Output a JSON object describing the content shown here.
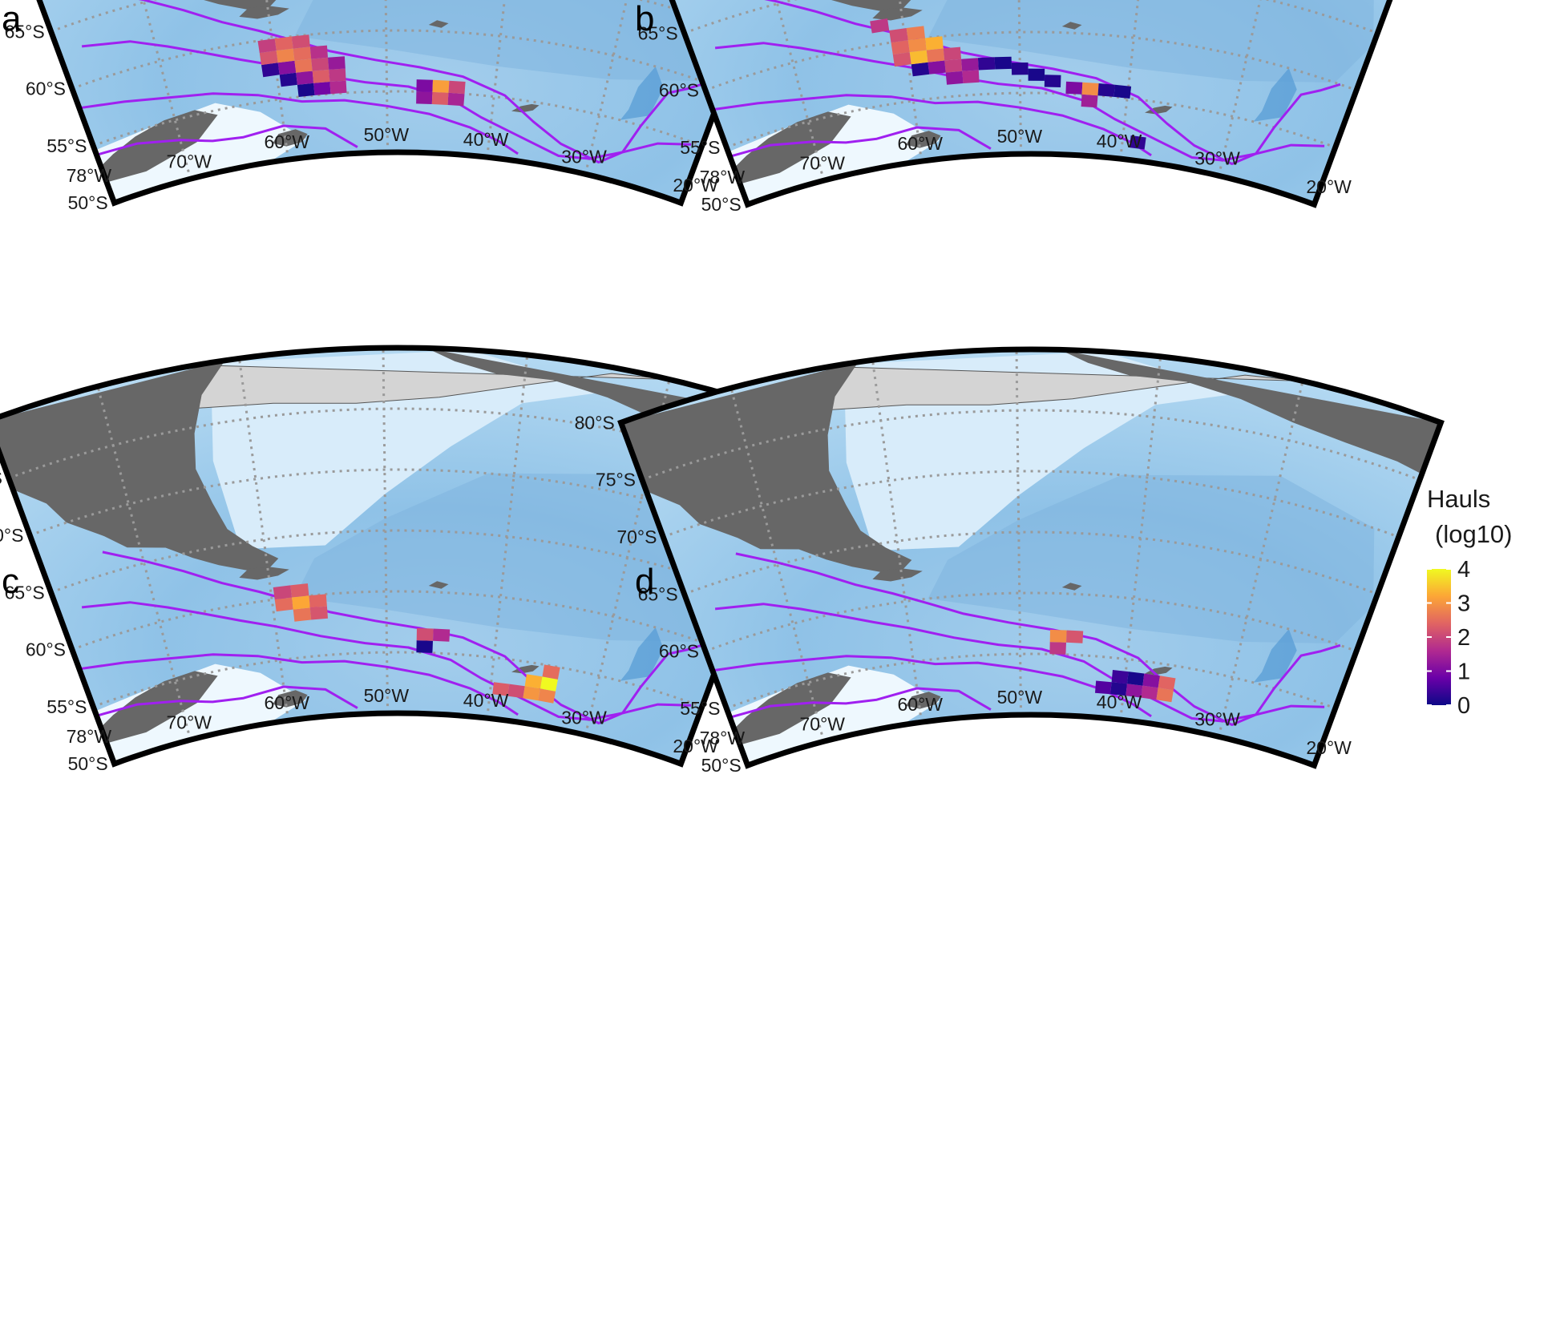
{
  "figure": {
    "panels": [
      {
        "id": "a",
        "label": "a",
        "grid_cells": [
          {
            "lon": -57.5,
            "lat": -55.5,
            "log10_hauls": 0.1
          },
          {
            "lon": -56,
            "lat": -55.5,
            "log10_hauls": 0.9
          },
          {
            "lon": -54.5,
            "lat": -55.5,
            "log10_hauls": 1.6
          },
          {
            "lon": -59,
            "lat": -56.5,
            "log10_hauls": 0.2
          },
          {
            "lon": -57.5,
            "lat": -56.5,
            "log10_hauls": 1.2
          },
          {
            "lon": -56,
            "lat": -56.5,
            "log10_hauls": 2.3
          },
          {
            "lon": -54.5,
            "lat": -56.5,
            "log10_hauls": 1.8
          },
          {
            "lon": -60.5,
            "lat": -57.5,
            "log10_hauls": 0.3
          },
          {
            "lon": -59,
            "lat": -57.5,
            "log10_hauls": 1.1
          },
          {
            "lon": -57.5,
            "lat": -57.5,
            "log10_hauls": 2.6
          },
          {
            "lon": -56,
            "lat": -57.5,
            "log10_hauls": 2.0
          },
          {
            "lon": -54.5,
            "lat": -57.5,
            "log10_hauls": 1.3
          },
          {
            "lon": -60.5,
            "lat": -58.5,
            "log10_hauls": 2.2
          },
          {
            "lon": -59,
            "lat": -58.5,
            "log10_hauls": 2.8
          },
          {
            "lon": -57.5,
            "lat": -58.5,
            "log10_hauls": 2.5
          },
          {
            "lon": -56,
            "lat": -58.5,
            "log10_hauls": 1.7
          },
          {
            "lon": -60.5,
            "lat": -59.5,
            "log10_hauls": 1.9
          },
          {
            "lon": -59,
            "lat": -59.5,
            "log10_hauls": 2.4
          },
          {
            "lon": -57.5,
            "lat": -59.5,
            "log10_hauls": 2.1
          },
          {
            "lon": -46.5,
            "lat": -54.5,
            "log10_hauls": 1.2
          },
          {
            "lon": -45,
            "lat": -54.5,
            "log10_hauls": 2.3
          },
          {
            "lon": -43.5,
            "lat": -54.5,
            "log10_hauls": 1.5
          },
          {
            "lon": -46.5,
            "lat": -55.5,
            "log10_hauls": 1.0
          },
          {
            "lon": -45,
            "lat": -55.5,
            "log10_hauls": 3.1
          },
          {
            "lon": -43.5,
            "lat": -55.5,
            "log10_hauls": 2.0
          }
        ]
      },
      {
        "id": "b",
        "label": "b",
        "grid_cells": [
          {
            "lon": -38.5,
            "lat": -51.5,
            "log10_hauls": 0.3
          },
          {
            "lon": -43.5,
            "lat": -54.5,
            "log10_hauls": 1.4
          },
          {
            "lon": -45,
            "lat": -55.5,
            "log10_hauls": 1.0
          },
          {
            "lon": -43.5,
            "lat": -55.5,
            "log10_hauls": 2.9
          },
          {
            "lon": -42,
            "lat": -55.5,
            "log10_hauls": 0.2
          },
          {
            "lon": -40.5,
            "lat": -55.5,
            "log10_hauls": 0.1
          },
          {
            "lon": -47,
            "lat": -56,
            "log10_hauls": 0.2
          },
          {
            "lon": -48.5,
            "lat": -56.5,
            "log10_hauls": 0.1
          },
          {
            "lon": -50,
            "lat": -57,
            "log10_hauls": 0.2
          },
          {
            "lon": -51.5,
            "lat": -57.5,
            "log10_hauls": 0.1
          },
          {
            "lon": -53,
            "lat": -57.5,
            "log10_hauls": 0.3
          },
          {
            "lon": -54.5,
            "lat": -57.5,
            "log10_hauls": 1.3
          },
          {
            "lon": -56,
            "lat": -57.5,
            "log10_hauls": 1.9
          },
          {
            "lon": -57.5,
            "lat": -57.5,
            "log10_hauls": 1.1
          },
          {
            "lon": -59,
            "lat": -57.5,
            "log10_hauls": 0.2
          },
          {
            "lon": -54.5,
            "lat": -56.5,
            "log10_hauls": 1.6
          },
          {
            "lon": -56,
            "lat": -56.5,
            "log10_hauls": 1.2
          },
          {
            "lon": -57.5,
            "lat": -58.5,
            "log10_hauls": 2.6
          },
          {
            "lon": -59,
            "lat": -58.5,
            "log10_hauls": 3.4
          },
          {
            "lon": -60.5,
            "lat": -58.5,
            "log10_hauls": 2.2
          },
          {
            "lon": -56,
            "lat": -58.5,
            "log10_hauls": 2.0
          },
          {
            "lon": -59,
            "lat": -59.5,
            "log10_hauls": 2.9
          },
          {
            "lon": -60.5,
            "lat": -59.5,
            "log10_hauls": 2.4
          },
          {
            "lon": -57.5,
            "lat": -59.5,
            "log10_hauls": 3.3
          },
          {
            "lon": -60.5,
            "lat": -60.5,
            "log10_hauls": 2.1
          },
          {
            "lon": -59,
            "lat": -60.5,
            "log10_hauls": 2.7
          },
          {
            "lon": -62,
            "lat": -61.5,
            "log10_hauls": 1.8
          }
        ]
      },
      {
        "id": "c",
        "label": "c",
        "grid_cells": [
          {
            "lon": -39,
            "lat": -52.5,
            "log10_hauls": 2.3
          },
          {
            "lon": -37.5,
            "lat": -52.5,
            "log10_hauls": 2.1
          },
          {
            "lon": -36,
            "lat": -52.5,
            "log10_hauls": 3.0
          },
          {
            "lon": -34.5,
            "lat": -52.5,
            "log10_hauls": 2.8
          },
          {
            "lon": -36,
            "lat": -53.5,
            "log10_hauls": 3.3
          },
          {
            "lon": -34.5,
            "lat": -53.5,
            "log10_hauls": 4.0
          },
          {
            "lon": -34.5,
            "lat": -54.5,
            "log10_hauls": 2.5
          },
          {
            "lon": -46.5,
            "lat": -55.5,
            "log10_hauls": 0.1
          },
          {
            "lon": -46.5,
            "lat": -56.5,
            "log10_hauls": 2.1
          },
          {
            "lon": -45,
            "lat": -56.5,
            "log10_hauls": 1.6
          },
          {
            "lon": -57.5,
            "lat": -58.5,
            "log10_hauls": 2.6
          },
          {
            "lon": -56,
            "lat": -58.5,
            "log10_hauls": 2.2
          },
          {
            "lon": -59,
            "lat": -59.5,
            "log10_hauls": 2.5
          },
          {
            "lon": -57.5,
            "lat": -59.5,
            "log10_hauls": 3.2
          },
          {
            "lon": -56,
            "lat": -59.5,
            "log10_hauls": 2.4
          },
          {
            "lon": -59,
            "lat": -60.5,
            "log10_hauls": 2.0
          },
          {
            "lon": -57.5,
            "lat": -60.5,
            "log10_hauls": 2.3
          }
        ]
      },
      {
        "id": "d",
        "label": "d",
        "grid_cells": [
          {
            "lon": -42,
            "lat": -52.5,
            "log10_hauls": 0.6
          },
          {
            "lon": -40.5,
            "lat": -52.5,
            "log10_hauls": 0.2
          },
          {
            "lon": -39,
            "lat": -52.5,
            "log10_hauls": 1.2
          },
          {
            "lon": -37.5,
            "lat": -52.5,
            "log10_hauls": 1.6
          },
          {
            "lon": -36,
            "lat": -52.5,
            "log10_hauls": 2.6
          },
          {
            "lon": -40.5,
            "lat": -53.5,
            "log10_hauls": 0.4
          },
          {
            "lon": -39,
            "lat": -53.5,
            "log10_hauls": 0.1
          },
          {
            "lon": -37.5,
            "lat": -53.5,
            "log10_hauls": 1.1
          },
          {
            "lon": -36,
            "lat": -53.5,
            "log10_hauls": 2.4
          },
          {
            "lon": -46.5,
            "lat": -55.5,
            "log10_hauls": 1.8
          },
          {
            "lon": -46.5,
            "lat": -56.5,
            "log10_hauls": 2.9
          },
          {
            "lon": -45,
            "lat": -56.5,
            "log10_hauls": 2.2
          }
        ]
      }
    ],
    "lon_ticks": [
      {
        "lon": -78,
        "label": "78°W"
      },
      {
        "lon": -70,
        "label": "70°W"
      },
      {
        "lon": -60,
        "label": "60°W"
      },
      {
        "lon": -50,
        "label": "50°W"
      },
      {
        "lon": -40,
        "label": "40°W"
      },
      {
        "lon": -30,
        "label": "30°W"
      },
      {
        "lon": -20,
        "label": "20°W"
      }
    ],
    "lat_ticks": [
      {
        "lat": -50,
        "label": "50°S"
      },
      {
        "lat": -55,
        "label": "55°S"
      },
      {
        "lat": -60,
        "label": "60°S"
      },
      {
        "lat": -65,
        "label": "65°S"
      },
      {
        "lat": -70,
        "label": "70°S"
      },
      {
        "lat": -75,
        "label": "75°S"
      },
      {
        "lat": -80,
        "label": "80°S"
      }
    ],
    "legend": {
      "title_line1": "Hauls",
      "title_line2": "(log10)",
      "ticks": [
        "0",
        "1",
        "2",
        "3",
        "4"
      ],
      "range": [
        0,
        4
      ],
      "palette": [
        "#0d0887",
        "#6a00a8",
        "#b12a90",
        "#e16462",
        "#fca636",
        "#f0f921"
      ]
    },
    "colors": {
      "ocean_deep": "#88bde3",
      "ocean_mid": "#a9d2ef",
      "ocean_shelf": "#d8ecfa",
      "ocean_shallow": "#eef8fe",
      "land": "#676767",
      "ice_shelf": "#d4d4d4",
      "front_line": "#a020f0",
      "graticule": "#9a9a9a",
      "frame": "#000000"
    }
  }
}
